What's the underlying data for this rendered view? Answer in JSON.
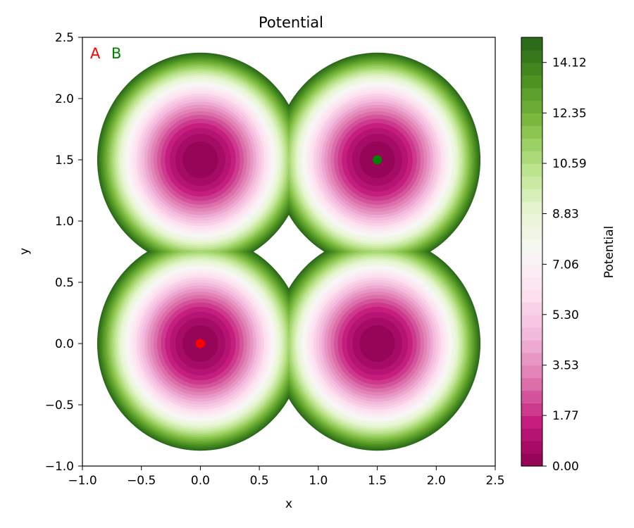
{
  "chart_data": {
    "type": "contour",
    "title": "Potential",
    "xlabel": "x",
    "ylabel": "y",
    "xlim": [
      -1.0,
      2.5
    ],
    "ylim": [
      -1.0,
      2.5
    ],
    "x_ticks": [
      "−1.0",
      "−0.5",
      "0.0",
      "0.5",
      "1.0",
      "1.5",
      "2.0",
      "2.5"
    ],
    "y_ticks": [
      "−1.0",
      "−0.5",
      "0.0",
      "0.5",
      "1.0",
      "1.5",
      "2.0",
      "2.5"
    ],
    "x_tick_values": [
      -1.0,
      -0.5,
      0.0,
      0.5,
      1.0,
      1.5,
      2.0,
      2.5
    ],
    "y_tick_values": [
      -1.0,
      -0.5,
      0.0,
      0.5,
      1.0,
      1.5,
      2.0,
      2.5
    ],
    "wells": [
      {
        "x": 0.0,
        "y": 0.0
      },
      {
        "x": 1.5,
        "y": 0.0
      },
      {
        "x": 0.0,
        "y": 1.5
      },
      {
        "x": 1.5,
        "y": 1.5
      }
    ],
    "potential_max": 15.0,
    "points": [
      {
        "label": "A",
        "x": 0.0,
        "y": 0.0,
        "color": "#ff0000"
      },
      {
        "label": "B",
        "x": 1.5,
        "y": 1.5,
        "color": "#008000"
      }
    ],
    "colorbar": {
      "label": "Potential",
      "colormap": "PiYG",
      "min": 0.0,
      "max": 15.0,
      "tick_values": [
        0.0,
        1.77,
        3.53,
        5.3,
        7.06,
        8.83,
        10.59,
        12.35,
        14.12
      ],
      "tick_labels": [
        "0.00",
        "1.77",
        "3.53",
        "5.30",
        "7.06",
        "8.83",
        "10.59",
        "12.35",
        "14.12"
      ]
    },
    "colors": {
      "pink_dark": "#8e0152",
      "white_mid": "#f7f7f7",
      "green_dark": "#276419"
    }
  }
}
